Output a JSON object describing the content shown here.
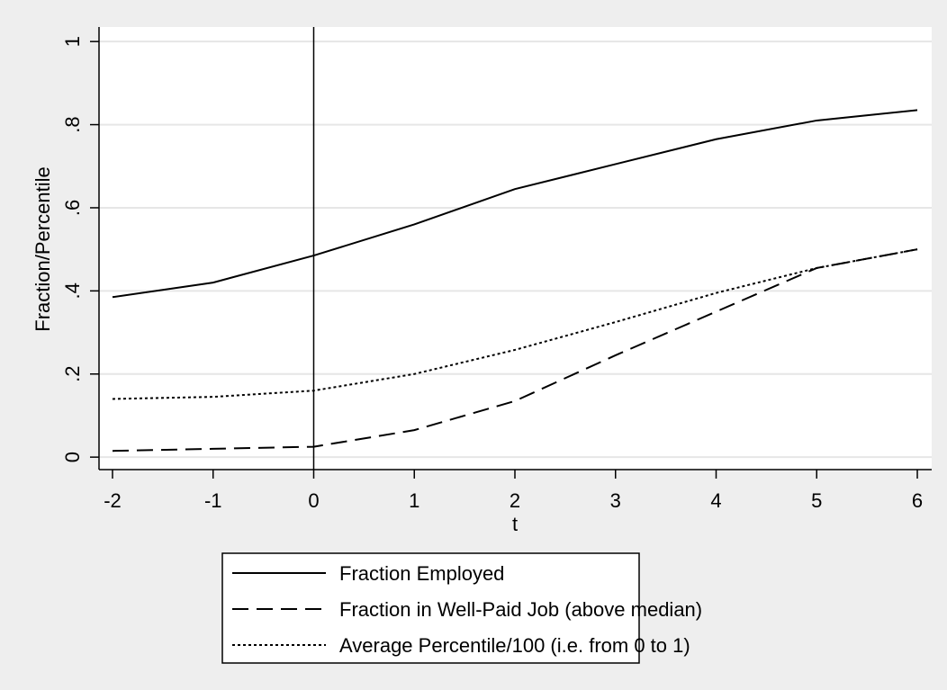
{
  "chart_data": {
    "type": "line",
    "x_label": "t",
    "y_label": "Fraction/Percentile",
    "x": [
      -2,
      -1,
      0,
      1,
      2,
      3,
      4,
      5,
      6
    ],
    "series": [
      {
        "name": "Fraction Employed",
        "color": "#000000",
        "line_style": "solid",
        "values": [
          0.385,
          0.42,
          0.485,
          0.56,
          0.645,
          0.705,
          0.765,
          0.81,
          0.835
        ]
      },
      {
        "name": "Fraction in Well-Paid Job (above median)",
        "color": "#000000",
        "line_style": "dash",
        "values": [
          0.015,
          0.02,
          0.025,
          0.065,
          0.135,
          0.245,
          0.35,
          0.455,
          0.5
        ]
      },
      {
        "name": "Average Percentile/100 (i.e. from 0 to 1)",
        "color": "#000000",
        "line_style": "dot",
        "values": [
          0.14,
          0.145,
          0.16,
          0.2,
          0.258,
          0.325,
          0.395,
          0.455,
          0.5
        ]
      }
    ],
    "xlim": [
      -2.134,
      6.143
    ],
    "ylim": [
      -0.03,
      1.035
    ],
    "xticks": [
      -2,
      -1,
      0,
      1,
      2,
      3,
      4,
      5,
      6
    ],
    "yticks": [
      0,
      {
        "value": 0.2,
        "label": ".2"
      },
      {
        "value": 0.4,
        "label": ".4"
      },
      {
        "value": 0.6,
        "label": ".6"
      },
      {
        "value": 0.8,
        "label": ".8"
      },
      1
    ],
    "xline": 0,
    "grid": true,
    "legend": "bottom"
  }
}
